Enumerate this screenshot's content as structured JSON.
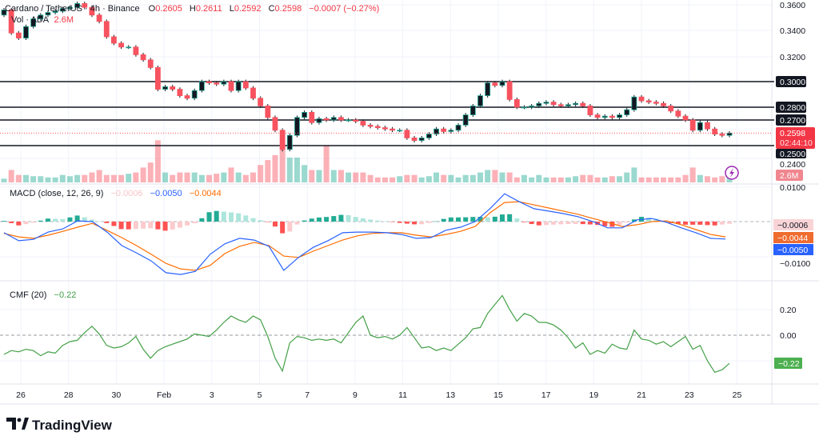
{
  "legend": {
    "symbol": "Cardano / TetherUS · 4h · Binance",
    "open_label": "O",
    "open": "0.2605",
    "high_label": "H",
    "high": "0.2611",
    "low_label": "L",
    "low": "0.2592",
    "close_label": "C",
    "close": "0.2598",
    "change": "−0.0007 (−0.27%)",
    "volume_label": "Vol · ADA",
    "volume": "2.6M"
  },
  "macd_legend": {
    "title": "MACD (close, 12, 26, 9)",
    "hist": "−0.0006",
    "macd": "−0.0050",
    "signal": "−0.0044"
  },
  "cmf_legend": {
    "title": "CMF (20)",
    "value": "−0.22"
  },
  "colors": {
    "up": "#22ab94",
    "down": "#f7525f",
    "macd": "#2962ff",
    "signal": "#ff6d00",
    "cmf": "#43a047",
    "level": "#131722"
  },
  "price_axis": {
    "ticks": [
      "0.3600",
      "0.3400",
      "0.3200",
      "0.2400"
    ],
    "levels": [
      "0.3000",
      "0.2800",
      "0.2700",
      "0.2500"
    ],
    "current": "0.2598",
    "countdown": "02:44:10",
    "volume_badge": "2.6M"
  },
  "macd_axis": {
    "ticks": [
      "0.0100",
      "−0.0100"
    ],
    "hist_badge": "−0.0006",
    "signal_badge": "−0.0044",
    "macd_badge": "−0.0050"
  },
  "cmf_axis": {
    "ticks": [
      "0.20",
      "0.00"
    ],
    "badge": "−0.22"
  },
  "time_axis": [
    "26",
    "28",
    "30",
    "Feb",
    "3",
    "5",
    "7",
    "9",
    "11",
    "13",
    "15",
    "17",
    "19",
    "21",
    "23",
    "25"
  ],
  "brand": "TradingView",
  "icons": {
    "logo": "tradingview-logo",
    "flash": "lightning-icon"
  },
  "chart_data": [
    {
      "type": "candlestick",
      "title": "Cardano / TetherUS · 4h · Binance",
      "ylim": [
        0.24,
        0.362
      ],
      "horizontal_levels": [
        0.3,
        0.28,
        0.27,
        0.25
      ],
      "close": [
        0.356,
        0.338,
        0.334,
        0.343,
        0.349,
        0.352,
        0.354,
        0.355,
        0.357,
        0.358,
        0.361,
        0.358,
        0.352,
        0.347,
        0.335,
        0.33,
        0.327,
        0.327,
        0.321,
        0.317,
        0.311,
        0.294,
        0.296,
        0.294,
        0.289,
        0.287,
        0.293,
        0.3,
        0.299,
        0.298,
        0.3,
        0.293,
        0.3,
        0.295,
        0.287,
        0.281,
        0.272,
        0.262,
        0.247,
        0.258,
        0.272,
        0.276,
        0.268,
        0.271,
        0.27,
        0.272,
        0.27,
        0.27,
        0.269,
        0.266,
        0.265,
        0.264,
        0.263,
        0.262,
        0.262,
        0.256,
        0.254,
        0.256,
        0.259,
        0.263,
        0.261,
        0.262,
        0.266,
        0.274,
        0.281,
        0.289,
        0.299,
        0.297,
        0.3,
        0.286,
        0.28,
        0.28,
        0.281,
        0.283,
        0.284,
        0.282,
        0.281,
        0.282,
        0.283,
        0.281,
        0.274,
        0.272,
        0.273,
        0.272,
        0.274,
        0.278,
        0.288,
        0.285,
        0.284,
        0.283,
        0.281,
        0.277,
        0.273,
        0.27,
        0.262,
        0.268,
        0.263,
        0.259,
        0.258,
        0.2598
      ],
      "volume_millions": [
        1.5,
        5,
        3,
        3,
        2.5,
        2.5,
        2,
        2,
        3,
        2.5,
        3,
        3,
        4,
        5,
        3,
        3,
        3,
        3.5,
        4,
        6,
        8,
        17,
        4,
        3,
        4,
        4,
        4,
        3,
        3,
        3.5,
        4,
        6,
        4,
        3,
        4,
        7,
        9,
        11,
        14,
        10,
        10,
        7,
        5,
        5,
        15,
        5,
        5,
        4,
        4,
        4,
        3,
        2,
        2,
        2,
        2.5,
        3,
        3,
        2,
        2.5,
        4,
        3,
        3,
        2,
        3,
        3,
        4,
        5,
        5,
        4,
        4,
        2,
        3,
        2,
        3,
        2,
        2,
        2,
        2,
        2.5,
        3,
        3,
        2,
        2,
        2.5,
        2.5,
        4,
        6,
        2,
        2,
        2,
        2,
        2,
        2,
        3,
        6,
        3,
        2.5,
        2,
        2.5,
        2.6
      ]
    },
    {
      "type": "line",
      "title": "MACD (close, 12, 26, 9)",
      "ylim": [
        -0.0165,
        0.0115
      ],
      "series": [
        {
          "name": "MACD",
          "values": [
            -0.0032,
            -0.0055,
            -0.0051,
            -0.003,
            -0.0021,
            0.0002,
            0.0,
            -0.003,
            -0.0069,
            -0.009,
            -0.0113,
            -0.0147,
            -0.0152,
            -0.0143,
            -0.0094,
            -0.0064,
            -0.0048,
            -0.0053,
            -0.0071,
            -0.014,
            -0.0103,
            -0.0074,
            -0.0055,
            -0.0032,
            -0.003,
            -0.003,
            -0.0032,
            -0.0037,
            -0.0048,
            -0.0046,
            -0.0025,
            -0.0016,
            0.0,
            0.0037,
            0.008,
            0.0057,
            0.0037,
            0.003,
            0.0023,
            0.0014,
            0.0,
            -0.0018,
            -0.0018,
            0.0005,
            0.0009,
            -0.0002,
            -0.0018,
            -0.0032,
            -0.0048,
            -0.005
          ]
        },
        {
          "name": "Signal",
          "values": [
            -0.0034,
            -0.0044,
            -0.0048,
            -0.0039,
            -0.0028,
            -0.0016,
            -0.0005,
            -0.0025,
            -0.0046,
            -0.0069,
            -0.0094,
            -0.012,
            -0.0136,
            -0.014,
            -0.0126,
            -0.0092,
            -0.0071,
            -0.006,
            -0.0069,
            -0.0099,
            -0.0103,
            -0.0085,
            -0.0069,
            -0.0053,
            -0.0041,
            -0.0034,
            -0.0032,
            -0.0032,
            -0.0039,
            -0.0044,
            -0.0037,
            -0.0028,
            -0.0014,
            0.0025,
            0.0055,
            0.0057,
            0.0048,
            0.0039,
            0.003,
            0.0021,
            0.0009,
            -0.0002,
            -0.0014,
            -0.0009,
            0.0,
            0.0002,
            -0.0009,
            -0.0023,
            -0.0037,
            -0.0044
          ]
        }
      ]
    },
    {
      "type": "line",
      "title": "CMF (20)",
      "ylim": [
        -0.38,
        0.42
      ],
      "values": [
        -0.15,
        -0.12,
        -0.13,
        -0.11,
        -0.12,
        -0.16,
        -0.13,
        -0.14,
        -0.08,
        -0.05,
        -0.04,
        0.02,
        0.07,
        0.01,
        -0.08,
        -0.1,
        -0.09,
        -0.06,
        -0.01,
        -0.11,
        -0.18,
        -0.12,
        -0.09,
        -0.07,
        -0.05,
        -0.03,
        0.01,
        0.0,
        -0.01,
        0.04,
        0.1,
        0.15,
        0.12,
        0.1,
        0.15,
        0.12,
        -0.01,
        -0.18,
        -0.28,
        -0.06,
        -0.01,
        -0.02,
        -0.04,
        -0.03,
        -0.04,
        -0.03,
        -0.06,
        0.02,
        0.1,
        0.15,
        0.0,
        -0.02,
        -0.01,
        -0.03,
        0.0,
        0.06,
        -0.02,
        -0.1,
        -0.09,
        -0.12,
        -0.1,
        -0.12,
        -0.07,
        -0.02,
        0.05,
        0.06,
        0.17,
        0.24,
        0.31,
        0.2,
        0.11,
        0.17,
        0.15,
        0.1,
        0.1,
        0.08,
        0.04,
        -0.02,
        -0.1,
        -0.06,
        -0.15,
        -0.12,
        -0.14,
        -0.07,
        -0.1,
        -0.11,
        0.04,
        -0.03,
        -0.04,
        -0.07,
        -0.05,
        -0.09,
        -0.05,
        -0.01,
        -0.11,
        -0.08,
        -0.2,
        -0.29,
        -0.27,
        -0.22
      ]
    }
  ]
}
